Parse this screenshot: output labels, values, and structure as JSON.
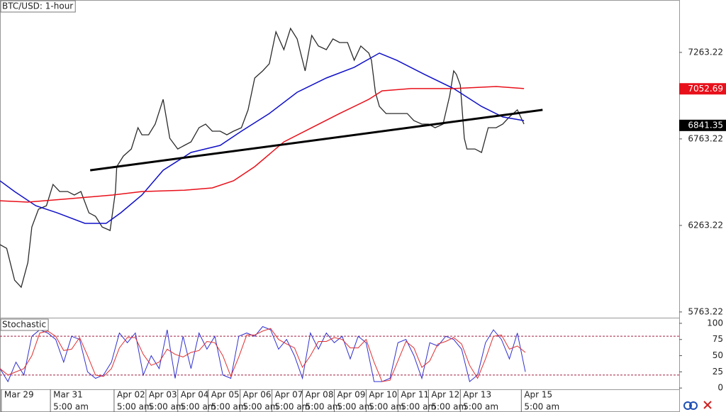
{
  "chart_data": [
    {
      "type": "line",
      "title": "BTC/USD: 1-hour",
      "xlim": [
        0,
        512
      ],
      "ylim": [
        5730,
        7566
      ],
      "yticks": [
        7263.22,
        6763.22,
        6263.22,
        5763.22
      ],
      "xticks": [
        {
          "value": 1,
          "label": "Mar 29"
        },
        {
          "value": 38,
          "label": "Mar 31",
          "time": "5:00 am"
        },
        {
          "value": 86,
          "label": "Apr 02",
          "time": "5:00 am"
        },
        {
          "value": 110,
          "label": "Apr 03",
          "time": "5:00 am"
        },
        {
          "value": 134,
          "label": "Apr 04",
          "time": "5:00 am"
        },
        {
          "value": 157,
          "label": "Apr 05",
          "time": "5:00 am"
        },
        {
          "value": 181,
          "label": "Apr 06",
          "time": "5:00 am"
        },
        {
          "value": 205,
          "label": "Apr 07",
          "time": "5:00 am"
        },
        {
          "value": 228,
          "label": "Apr 08",
          "time": "5:00 am"
        },
        {
          "value": 252,
          "label": "Apr 09",
          "time": "5:00 am"
        },
        {
          "value": 276,
          "label": "Apr 10",
          "time": "5:00 am"
        },
        {
          "value": 300,
          "label": "Apr 11",
          "time": "5:00 am"
        },
        {
          "value": 323,
          "label": "Apr 12",
          "time": "5:00 am"
        },
        {
          "value": 347,
          "label": "Apr 13",
          "time": "5:00 am"
        },
        {
          "value": 393,
          "label": "Apr 15",
          "time": "5:00 am"
        }
      ],
      "price_labels": [
        {
          "value": 7052.69,
          "color": "#e8101a"
        },
        {
          "value": 6841.35,
          "color": "#000000"
        }
      ],
      "series": [
        {
          "color": "#2b2b2b",
          "width": 1.3,
          "x": [
            0,
            5,
            11,
            16,
            21,
            24,
            29,
            35,
            40,
            45,
            51,
            56,
            61,
            67,
            72,
            77,
            83,
            87,
            88,
            93,
            99,
            104,
            107,
            112,
            117,
            123,
            128,
            134,
            139,
            144,
            150,
            155,
            160,
            166,
            171,
            176,
            182,
            187,
            192,
            198,
            203,
            208,
            214,
            219,
            224,
            230,
            235,
            240,
            246,
            251,
            256,
            262,
            267,
            272,
            278,
            280,
            283,
            286,
            291,
            296,
            302,
            307,
            312,
            318,
            323,
            328,
            334,
            339,
            342,
            344,
            347,
            350,
            352,
            358,
            363,
            368,
            374,
            379,
            384,
            390,
            395
          ],
          "values": [
            6152,
            6131,
            5947,
            5906,
            6049,
            6254,
            6357,
            6377,
            6500,
            6459,
            6459,
            6439,
            6459,
            6336,
            6316,
            6254,
            6234,
            6459,
            6603,
            6664,
            6705,
            6828,
            6787,
            6787,
            6849,
            6992,
            6767,
            6705,
            6726,
            6746,
            6828,
            6849,
            6808,
            6808,
            6787,
            6808,
            6828,
            6931,
            7115,
            7156,
            7197,
            7382,
            7279,
            7402,
            7341,
            7156,
            7361,
            7300,
            7279,
            7341,
            7320,
            7320,
            7218,
            7300,
            7259,
            7218,
            7033,
            6951,
            6910,
            6910,
            6910,
            6910,
            6869,
            6849,
            6849,
            6828,
            6849,
            7013,
            7156,
            7136,
            7074,
            6767,
            6705,
            6705,
            6685,
            6828,
            6828,
            6849,
            6890,
            6931,
            6849
          ]
        },
        {
          "color": "#1010c8",
          "width": 1.5,
          "x": [
            0,
            11,
            27,
            43,
            64,
            80,
            91,
            107,
            123,
            144,
            166,
            182,
            203,
            224,
            246,
            267,
            286,
            299,
            320,
            342,
            363,
            379,
            395
          ],
          "values": [
            6521,
            6459,
            6377,
            6336,
            6275,
            6275,
            6336,
            6439,
            6582,
            6685,
            6726,
            6808,
            6910,
            7033,
            7115,
            7177,
            7259,
            7218,
            7136,
            7054,
            6951,
            6890,
            6869
          ]
        },
        {
          "color": "#e8101a",
          "width": 1.5,
          "x": [
            0,
            21,
            53,
            85,
            107,
            139,
            160,
            176,
            192,
            214,
            235,
            256,
            278,
            288,
            310,
            342,
            374,
            395
          ],
          "values": [
            6406,
            6398,
            6418,
            6439,
            6459,
            6467,
            6480,
            6521,
            6603,
            6746,
            6828,
            6910,
            6992,
            7041,
            7054,
            7054,
            7066,
            7054
          ]
        },
        {
          "color": "#000000",
          "width": 3,
          "x": [
            68,
            409
          ],
          "values": [
            6582,
            6931
          ]
        }
      ]
    },
    {
      "type": "line",
      "title": "Stochastic",
      "xlim": [
        0,
        512
      ],
      "ylim": [
        -2,
        107.6
      ],
      "yticks": [
        100,
        75,
        50,
        25,
        0
      ],
      "levels": [
        80,
        20
      ],
      "series": [
        {
          "color": "#3030d0",
          "width": 1,
          "x": [
            0,
            6,
            12,
            18,
            24,
            30,
            36,
            42,
            48,
            54,
            60,
            66,
            72,
            78,
            84,
            90,
            96,
            102,
            108,
            114,
            120,
            126,
            132,
            138,
            144,
            150,
            156,
            162,
            168,
            174,
            180,
            186,
            192,
            198,
            204,
            210,
            216,
            222,
            228,
            234,
            240,
            246,
            252,
            258,
            264,
            270,
            276,
            282,
            288,
            294,
            300,
            306,
            312,
            318,
            324,
            330,
            336,
            342,
            348,
            354,
            360,
            366,
            372,
            378,
            384,
            390,
            396
          ],
          "values": [
            30,
            10,
            40,
            20,
            80,
            90,
            85,
            75,
            40,
            80,
            75,
            25,
            15,
            20,
            40,
            85,
            70,
            85,
            20,
            50,
            30,
            90,
            15,
            80,
            30,
            85,
            60,
            80,
            20,
            15,
            80,
            85,
            80,
            95,
            90,
            60,
            75,
            50,
            15,
            85,
            60,
            85,
            70,
            80,
            45,
            80,
            70,
            10,
            10,
            15,
            70,
            75,
            50,
            15,
            70,
            65,
            80,
            75,
            60,
            10,
            20,
            70,
            90,
            75,
            45,
            85,
            25
          ]
        },
        {
          "color": "#e03030",
          "width": 1,
          "x": [
            0,
            6,
            12,
            18,
            24,
            30,
            36,
            42,
            48,
            54,
            60,
            66,
            72,
            78,
            84,
            90,
            96,
            102,
            108,
            114,
            120,
            126,
            132,
            138,
            144,
            150,
            156,
            162,
            168,
            174,
            180,
            186,
            192,
            198,
            204,
            210,
            216,
            222,
            228,
            234,
            240,
            246,
            252,
            258,
            264,
            270,
            276,
            282,
            288,
            294,
            300,
            306,
            312,
            318,
            324,
            330,
            336,
            342,
            348,
            354,
            360,
            366,
            372,
            378,
            384,
            390,
            396
          ],
          "values": [
            30,
            20,
            25,
            30,
            50,
            85,
            88,
            80,
            58,
            60,
            78,
            50,
            20,
            18,
            30,
            62,
            78,
            78,
            52,
            35,
            40,
            60,
            52,
            48,
            55,
            58,
            72,
            70,
            50,
            18,
            48,
            82,
            82,
            88,
            92,
            75,
            68,
            62,
            32,
            50,
            72,
            72,
            78,
            75,
            62,
            62,
            75,
            40,
            10,
            12,
            42,
            72,
            62,
            32,
            42,
            68,
            72,
            78,
            68,
            35,
            15,
            45,
            80,
            82,
            60,
            65,
            55
          ]
        }
      ]
    }
  ]
}
